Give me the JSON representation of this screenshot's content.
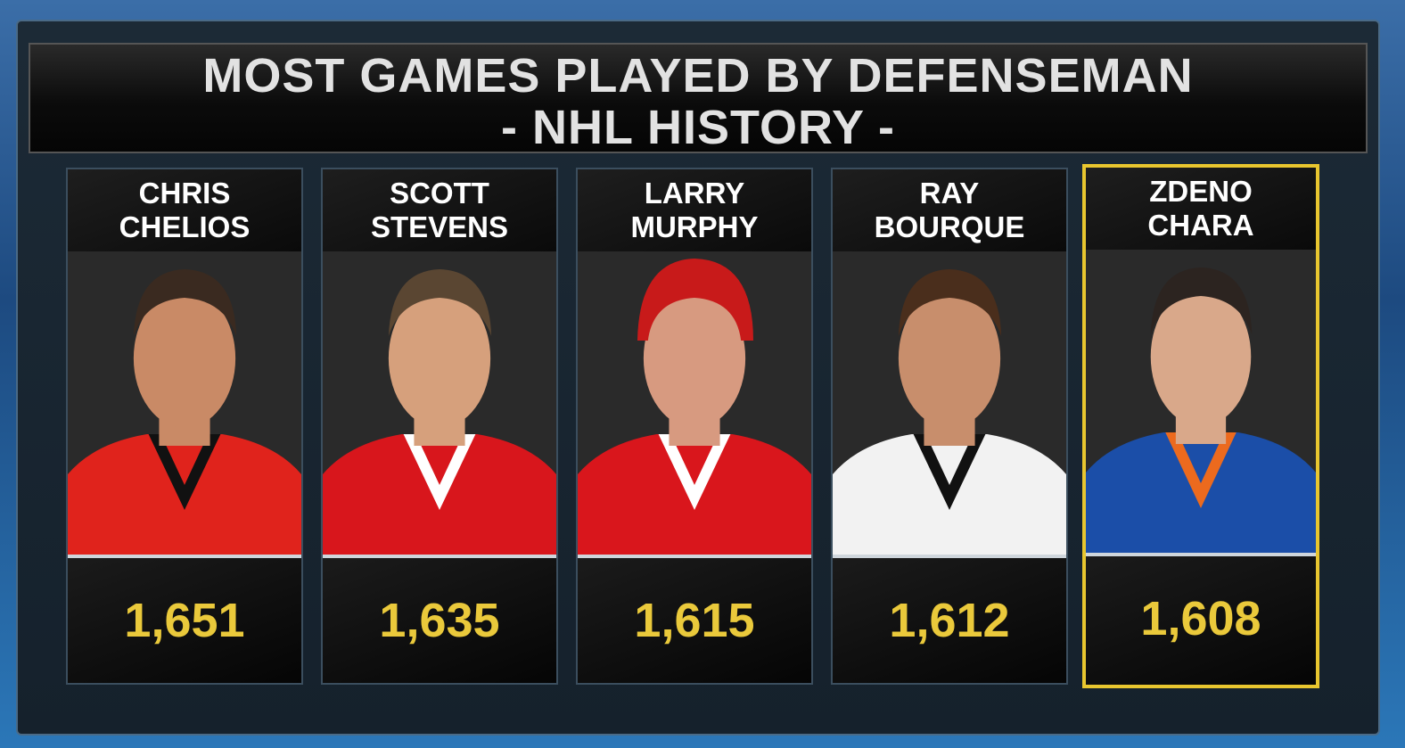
{
  "title": {
    "line1": "MOST GAMES PLAYED BY DEFENSEMAN",
    "line2": "- NHL HISTORY -"
  },
  "players": [
    {
      "first": "CHRIS",
      "last": "CHELIOS",
      "games": "1,651"
    },
    {
      "first": "SCOTT",
      "last": "STEVENS",
      "games": "1,635"
    },
    {
      "first": "LARRY",
      "last": "MURPHY",
      "games": "1,615"
    },
    {
      "first": "RAY",
      "last": "BOURQUE",
      "games": "1,612"
    },
    {
      "first": "ZDENO",
      "last": "CHARA",
      "games": "1,608"
    }
  ]
}
